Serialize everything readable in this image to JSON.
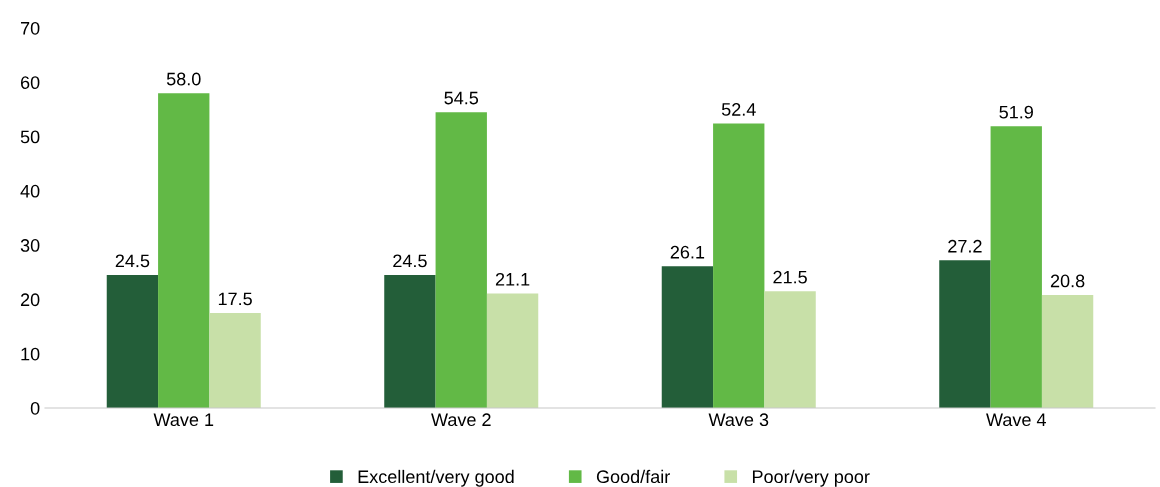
{
  "chart_data": {
    "type": "bar",
    "categories": [
      "Wave 1",
      "Wave 2",
      "Wave 3",
      "Wave 4"
    ],
    "series": [
      {
        "name": "Excellent/very good",
        "color": "#235e39",
        "values": [
          24.5,
          24.5,
          26.1,
          27.2
        ]
      },
      {
        "name": "Good/fair",
        "color": "#62b946",
        "values": [
          58.0,
          54.5,
          52.4,
          51.9
        ]
      },
      {
        "name": "Poor/very poor",
        "color": "#c8e0a8",
        "values": [
          17.5,
          21.1,
          21.5,
          20.8
        ]
      }
    ],
    "value_labels": [
      [
        "24.5",
        "24.5",
        "26.1",
        "27.2"
      ],
      [
        "58.0",
        "54.5",
        "52.4",
        "51.9"
      ],
      [
        "17.5",
        "21.1",
        "21.5",
        "20.8"
      ]
    ],
    "ylim": [
      0,
      70
    ],
    "yticks": [
      0,
      10,
      20,
      30,
      40,
      50,
      60,
      70
    ],
    "grid": false,
    "legend": "bottom"
  }
}
